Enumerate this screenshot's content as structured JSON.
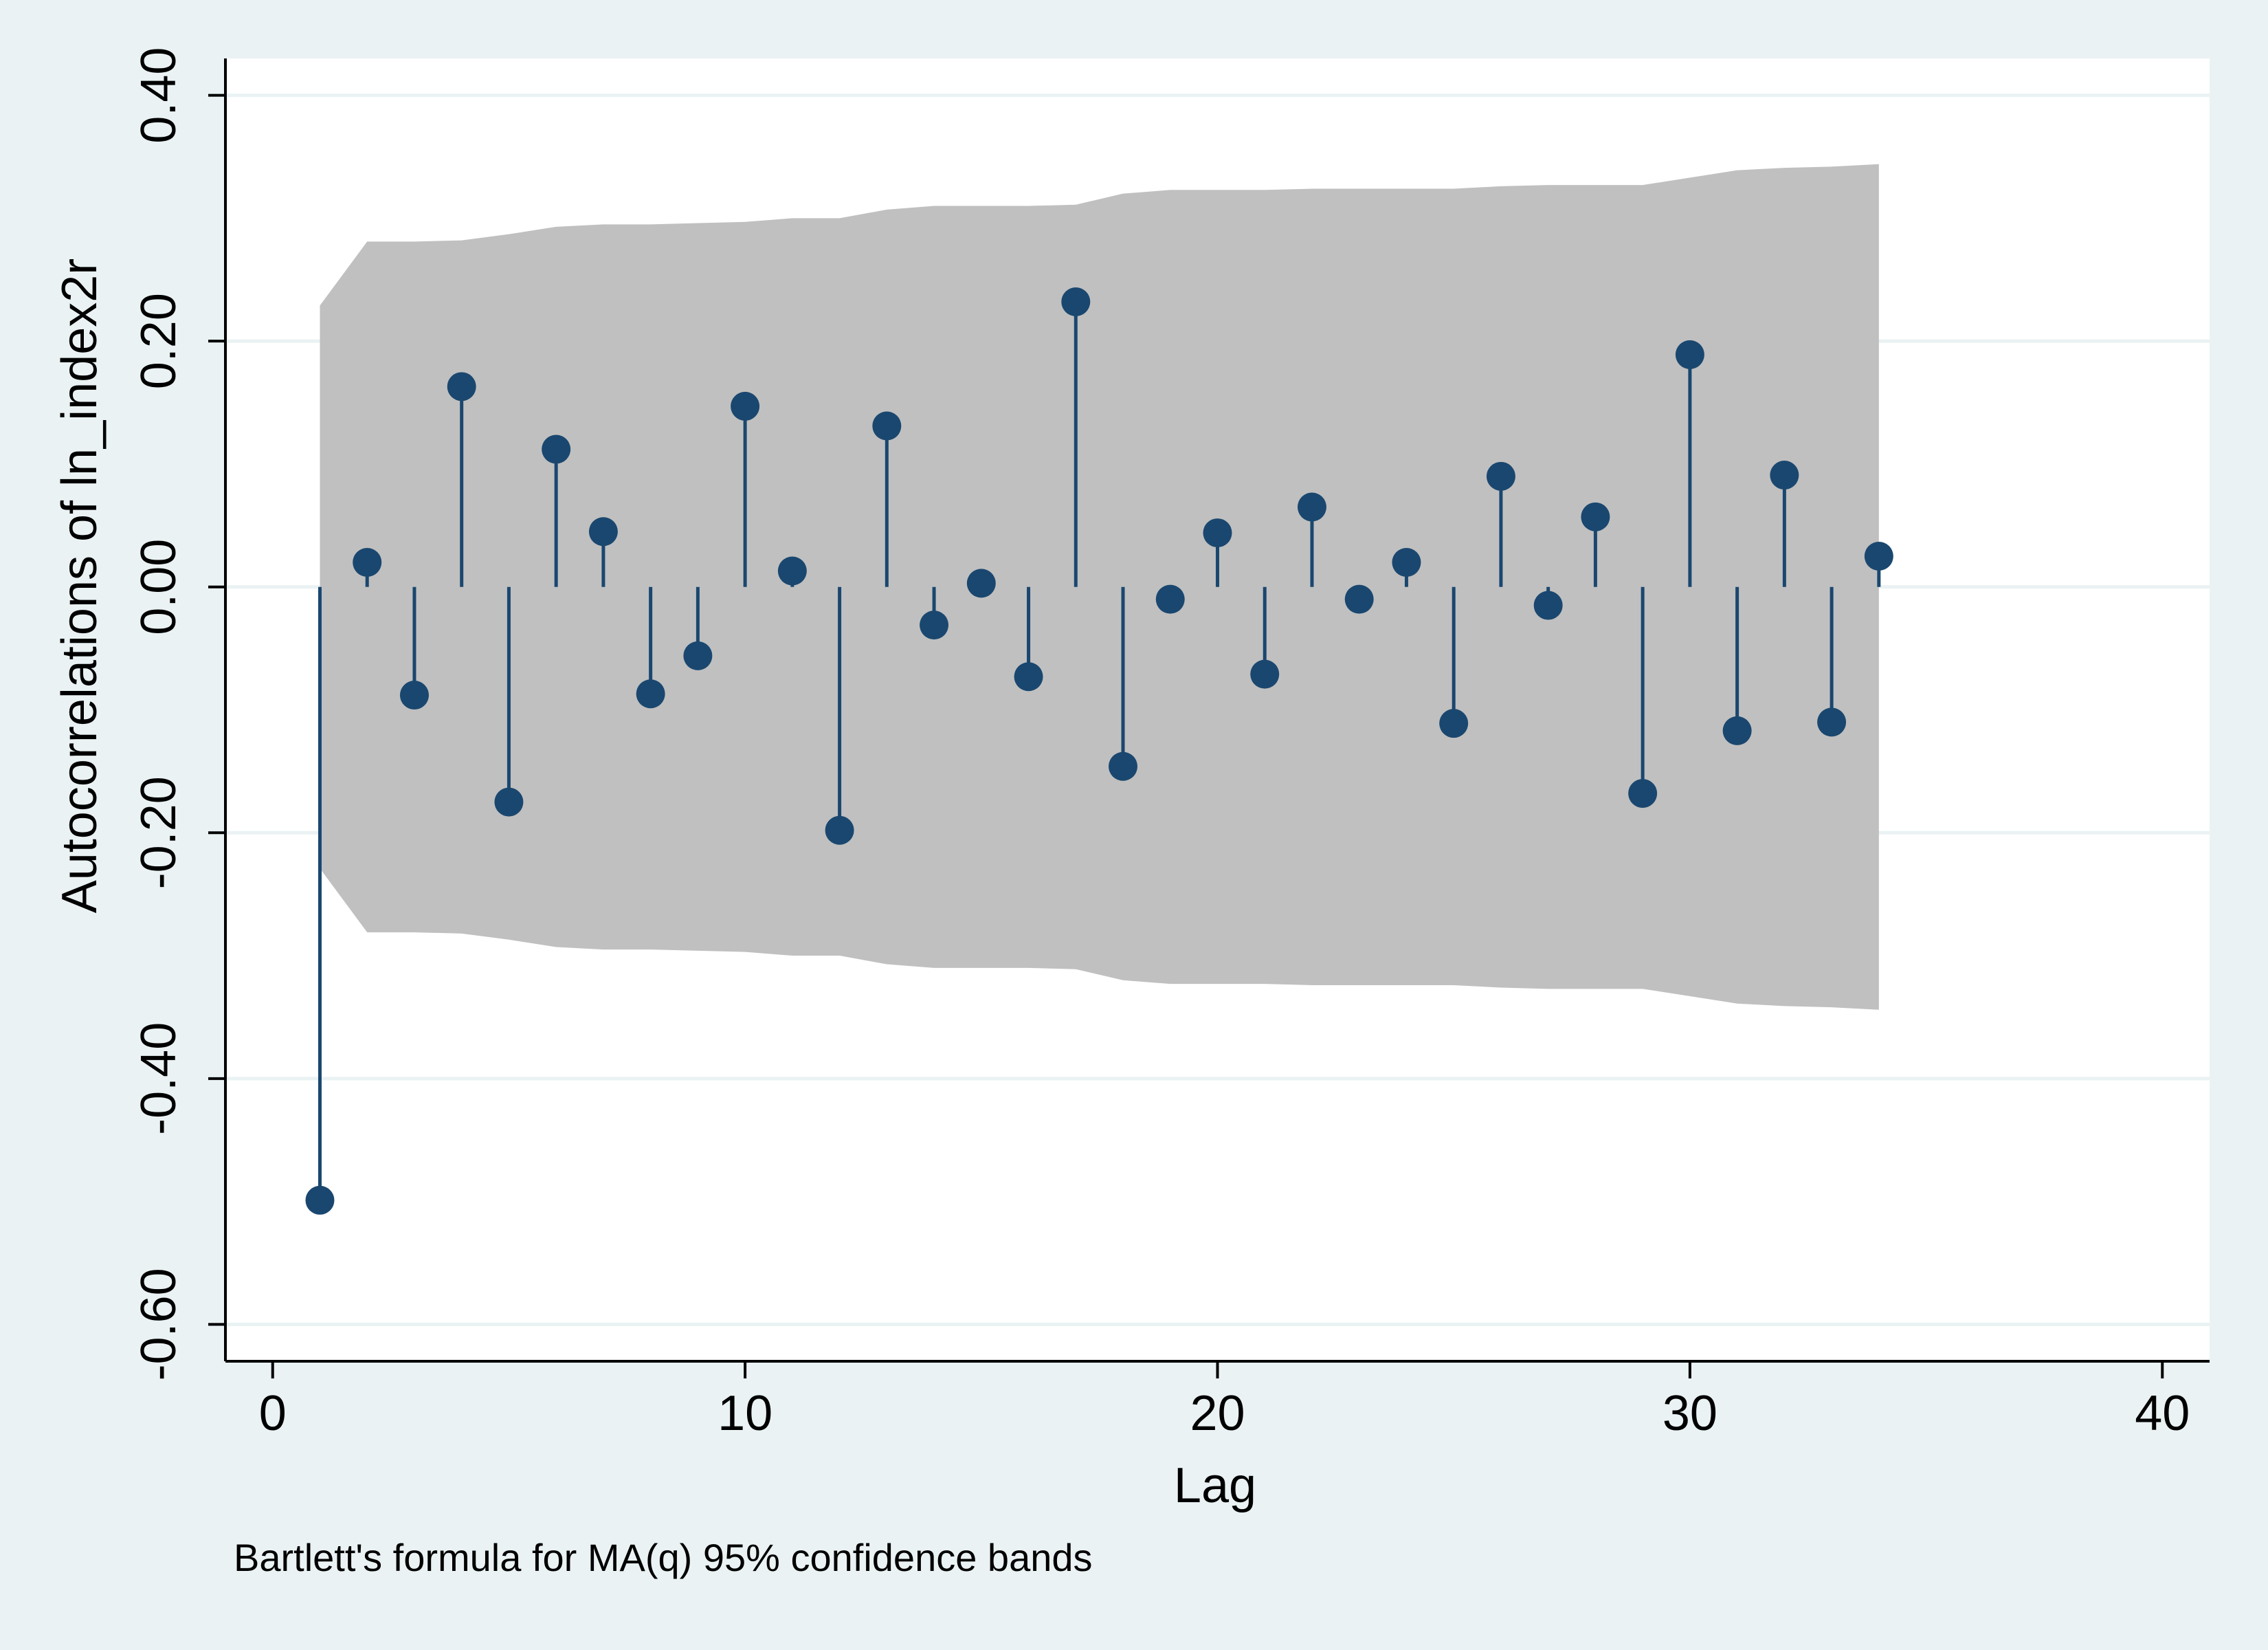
{
  "chart_data": {
    "type": "scatter",
    "subtype": "correlogram",
    "title": "",
    "xlabel": "Lag",
    "ylabel": "Autocorrelations of ln_index2r",
    "note": "Bartlett's formula for MA(q) 95% confidence bands",
    "xlim": [
      -1,
      41
    ],
    "ylim": [
      -0.63,
      0.43
    ],
    "x_ticks": [
      0,
      10,
      20,
      30,
      40
    ],
    "y_ticks": [
      -0.6,
      -0.4,
      -0.2,
      0.0,
      0.2,
      0.4
    ],
    "y_tick_labels": [
      "-0.60",
      "-0.40",
      "-0.20",
      "0.00",
      "0.20",
      "0.40"
    ],
    "grid": true,
    "colors": {
      "background": "#eaf2f3",
      "plot": "#ffffff",
      "band": "#c0c0c0",
      "marker": "#1a476f",
      "gridline": "#eaf2f3"
    },
    "series": [
      {
        "lags": [
          1,
          2,
          3,
          4,
          5,
          6,
          7,
          8,
          9,
          10,
          11,
          12,
          13,
          14,
          15,
          16,
          17,
          18,
          19,
          20,
          21,
          22,
          23,
          24,
          25,
          26,
          27,
          28,
          29,
          30,
          31,
          32,
          33,
          34
        ],
        "values": [
          -0.499,
          0.02,
          -0.088,
          0.163,
          -0.175,
          0.112,
          0.045,
          -0.087,
          -0.056,
          0.147,
          0.013,
          -0.198,
          0.131,
          -0.031,
          0.003,
          -0.073,
          0.232,
          -0.146,
          -0.01,
          0.044,
          -0.071,
          0.065,
          -0.01,
          0.02,
          -0.111,
          0.09,
          -0.015,
          0.057,
          -0.168,
          0.189,
          -0.117,
          0.091,
          -0.11,
          0.025
        ]
      }
    ],
    "confidence_band": {
      "lags": [
        1,
        2,
        3,
        4,
        5,
        6,
        7,
        8,
        9,
        10,
        11,
        12,
        13,
        14,
        15,
        16,
        17,
        18,
        19,
        20,
        21,
        22,
        23,
        24,
        25,
        26,
        27,
        28,
        29,
        30,
        31,
        32,
        33,
        34
      ],
      "upper": [
        0.229,
        0.281,
        0.281,
        0.282,
        0.287,
        0.293,
        0.295,
        0.295,
        0.296,
        0.297,
        0.3,
        0.3,
        0.307,
        0.31,
        0.31,
        0.31,
        0.311,
        0.32,
        0.323,
        0.323,
        0.323,
        0.324,
        0.324,
        0.324,
        0.324,
        0.326,
        0.327,
        0.327,
        0.327,
        0.333,
        0.339,
        0.341,
        0.342,
        0.344
      ]
    }
  }
}
